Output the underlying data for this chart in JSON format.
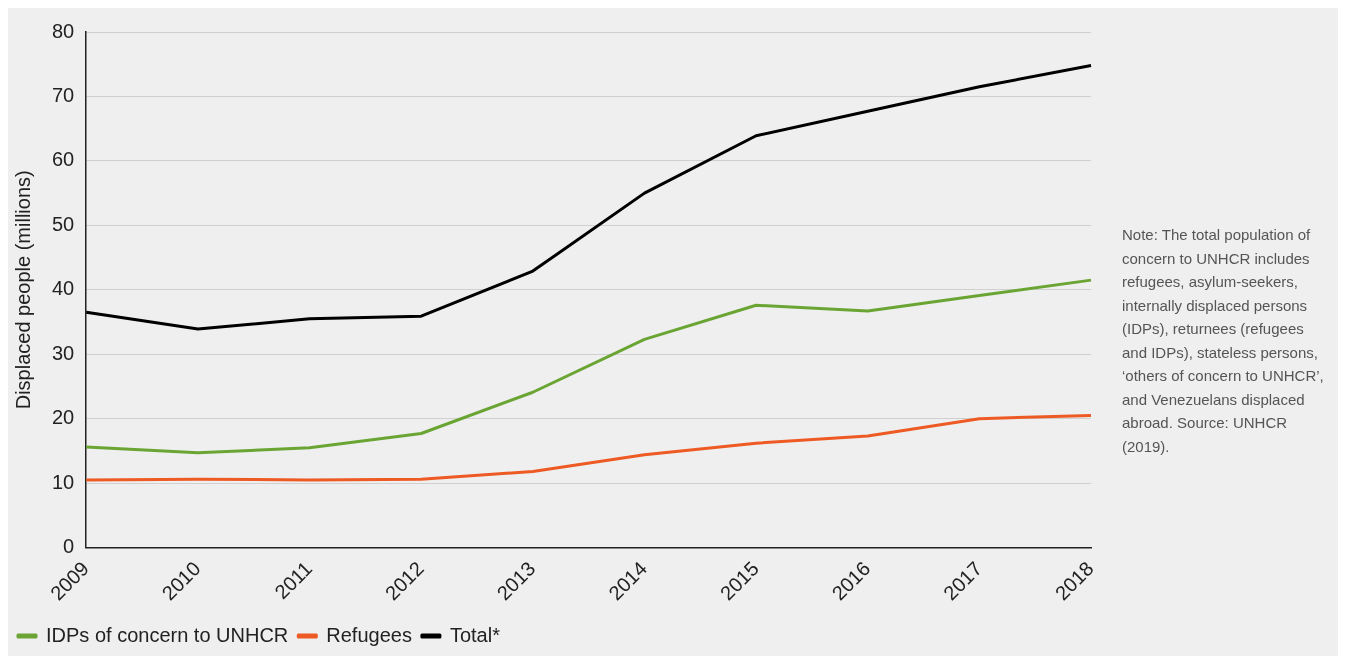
{
  "chart_data": {
    "type": "line",
    "ylabel": "Displaced people (millions)",
    "categories": [
      "2009",
      "2010",
      "2011",
      "2012",
      "2013",
      "2014",
      "2015",
      "2016",
      "2017",
      "2018"
    ],
    "series": [
      {
        "name": "IDPs of concern to UNHCR",
        "color": "#6aa534",
        "values": [
          15.6,
          14.7,
          15.5,
          17.7,
          24.1,
          32.3,
          37.6,
          36.7,
          39.1,
          41.5
        ]
      },
      {
        "name": "Refugees",
        "color": "#ee5a24",
        "values": [
          10.5,
          10.6,
          10.5,
          10.6,
          11.8,
          14.4,
          16.2,
          17.3,
          20.0,
          20.5
        ]
      },
      {
        "name": "Total*",
        "color": "#000000",
        "values": [
          36.5,
          33.9,
          35.5,
          35.9,
          42.9,
          55.0,
          63.9,
          67.7,
          71.5,
          74.8
        ]
      }
    ],
    "ylim": [
      0,
      80
    ],
    "yticks": [
      0,
      10,
      20,
      30,
      40,
      50,
      60,
      70,
      80
    ],
    "grid": "y",
    "legend": "bottom left",
    "marker": "none",
    "line_style": "solid",
    "annotations": [
      "Note: The total population of concern to UNHCR includes refugees, asylum-seekers, internally displaced persons (IDPs), returnees (refugees and IDPs), stateless persons, ‘others of concern to UNHCR’, and Venezuelans displaced abroad. Source: UNHCR (2019)."
    ]
  }
}
